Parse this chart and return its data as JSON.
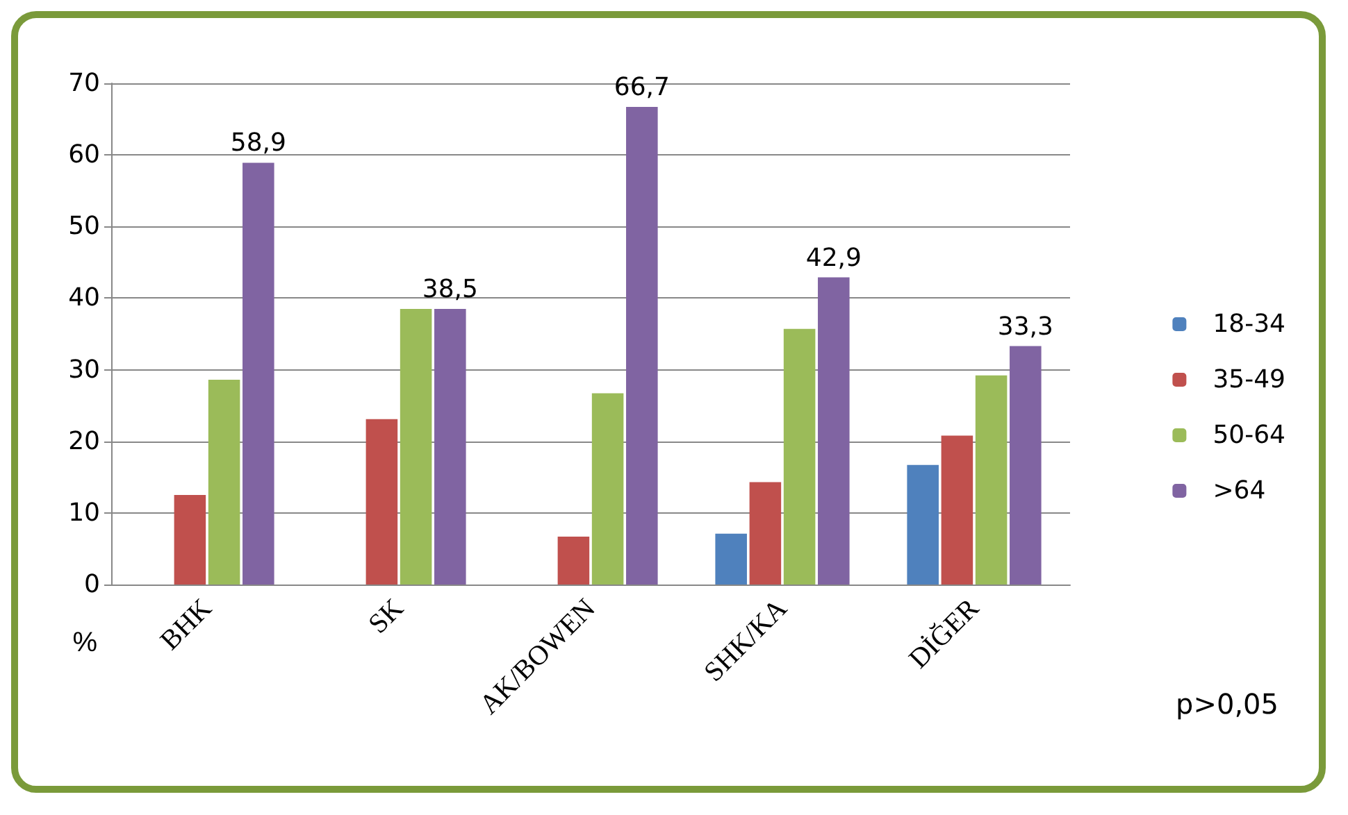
{
  "chart_data": {
    "type": "bar",
    "ylabel": "%",
    "categories": [
      "BHK",
      "SK",
      "AK/BOWEN",
      "SHK/KA",
      "DİĞER"
    ],
    "series": [
      {
        "name": "18-34",
        "color": "#4f81bd",
        "values": [
          0,
          0,
          0,
          7.1,
          16.7
        ]
      },
      {
        "name": "35-49",
        "color": "#c0504d",
        "values": [
          12.5,
          23.1,
          6.7,
          14.3,
          20.8
        ]
      },
      {
        "name": "50-64",
        "color": "#9bbb59",
        "values": [
          28.6,
          38.5,
          26.7,
          35.7,
          29.2
        ]
      },
      {
        "name": ">64",
        "color": "#8064a2",
        "values": [
          58.9,
          38.5,
          66.7,
          42.9,
          33.3
        ],
        "value_labels": [
          "58,9",
          "38,5",
          "66,7",
          "42,9",
          "33,3"
        ]
      }
    ],
    "ylim": [
      0,
      70
    ],
    "yticks": [
      0,
      10,
      20,
      30,
      40,
      50,
      60,
      70
    ],
    "grid": "y",
    "legend": "right",
    "annotations": [
      "p>0,05"
    ]
  }
}
